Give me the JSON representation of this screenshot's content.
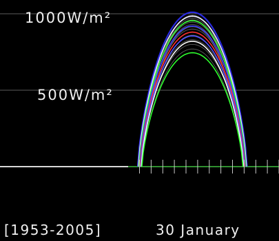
{
  "chart_data": {
    "type": "line",
    "title": "",
    "ylabel": "",
    "xlabel": "",
    "ylim": [
      0,
      1200
    ],
    "xlim": [
      0,
      24
    ],
    "y_ticks": [
      {
        "value": 1000,
        "label": "1000W/m²"
      },
      {
        "value": 500,
        "label": "500W/m²"
      }
    ],
    "hour_ticks": [
      0,
      1,
      2,
      3,
      4,
      5,
      6,
      7,
      8,
      9,
      10,
      11,
      12,
      13,
      14,
      15,
      16,
      17,
      18,
      19,
      20,
      21,
      22,
      23,
      24
    ],
    "date_label": "30 January",
    "years_label": "[1953-2005]",
    "grid": true,
    "series": [
      {
        "stat": "daily traces",
        "color": "#bdbdbd",
        "peaks": [
          770,
          800,
          830,
          860,
          880,
          900,
          915,
          930,
          945,
          960,
          970,
          980,
          990
        ]
      },
      {
        "stat": "upper envelope",
        "color": "#2a2ae0",
        "peak": 1010
      },
      {
        "stat": "upper white",
        "color": "#e8e8ff",
        "peak": 985
      },
      {
        "stat": "upper green",
        "color": "#33ff33",
        "peak": 955
      },
      {
        "stat": "blue 2",
        "color": "#3c3cff",
        "peak": 920
      },
      {
        "stat": "median",
        "color": "#ff3030",
        "peak": 880
      },
      {
        "stat": "blue 3",
        "color": "#5050ff",
        "peak": 855
      },
      {
        "stat": "lower white",
        "color": "#ffffff",
        "peak": 820
      },
      {
        "stat": "lower green",
        "color": "#2eff2e",
        "peak": 745
      }
    ],
    "sunrise_hour": 11.85,
    "sunset_hour": 21.25,
    "peak_hour": 16.55
  }
}
